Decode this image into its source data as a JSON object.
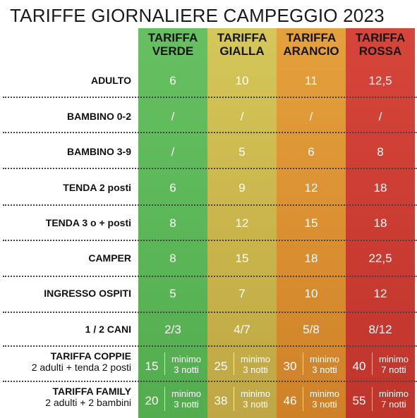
{
  "title": "TARIFFE GIORNALIERE CAMPEGGIO 2023",
  "columns": [
    {
      "line1": "TARIFFA",
      "line2": "VERDE"
    },
    {
      "line1": "TARIFFA",
      "line2": "GIALLA"
    },
    {
      "line1": "TARIFFA",
      "line2": "ARANCIO"
    },
    {
      "line1": "TARIFFA",
      "line2": "ROSSA"
    }
  ],
  "rows": [
    {
      "label": "ADULTO",
      "values": [
        "6",
        "10",
        "11",
        "12,5"
      ]
    },
    {
      "label": "BAMBINO 0-2",
      "values": [
        "/",
        "/",
        "/",
        "/"
      ]
    },
    {
      "label": "BAMBINO 3-9",
      "values": [
        "/",
        "5",
        "6",
        "8"
      ]
    },
    {
      "label": "TENDA 2 posti",
      "values": [
        "6",
        "9",
        "12",
        "18"
      ]
    },
    {
      "label": "TENDA 3 o + posti",
      "values": [
        "8",
        "12",
        "15",
        "18"
      ]
    },
    {
      "label": "CAMPER",
      "values": [
        "8",
        "15",
        "18",
        "22,5"
      ]
    },
    {
      "label": "INGRESSO OSPITI",
      "values": [
        "5",
        "7",
        "10",
        "12"
      ]
    },
    {
      "label": "1 / 2  CANI",
      "values": [
        "2/3",
        "4/7",
        "5/8",
        "8/12"
      ]
    }
  ],
  "packages": [
    {
      "label": "TARIFFA COPPIE",
      "sublabel": "2 adulti + tenda 2 posti",
      "cells": [
        {
          "price": "15",
          "min1": "minimo",
          "min2": "3 notti"
        },
        {
          "price": "25",
          "min1": "minimo",
          "min2": "3 notti"
        },
        {
          "price": "30",
          "min1": "minimo",
          "min2": "3 notti"
        },
        {
          "price": "40",
          "min1": "minimo",
          "min2": "7 notti"
        }
      ]
    },
    {
      "label": "TARIFFA FAMILY",
      "sublabel": "2 adulti + 2 bambini",
      "cells": [
        {
          "price": "20",
          "min1": "minimo",
          "min2": "3 notti"
        },
        {
          "price": "38",
          "min1": "minimo",
          "min2": "3 notti"
        },
        {
          "price": "46",
          "min1": "minimo",
          "min2": "3 notti"
        },
        {
          "price": "55",
          "min1": "minimo",
          "min2": "7 notti"
        }
      ]
    }
  ],
  "colors": {
    "verde": "#5db859",
    "gialla": "#cbb74d",
    "arancio": "#dc9233",
    "rossa": "#cc3d33"
  }
}
